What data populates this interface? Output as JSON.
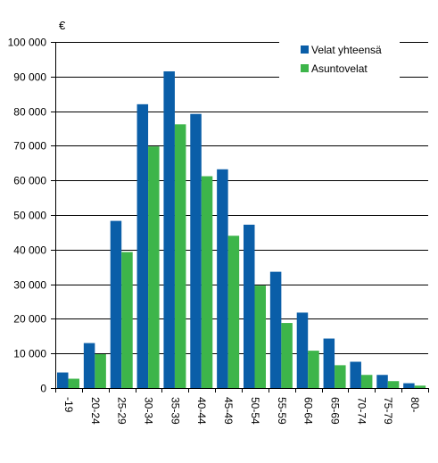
{
  "chart_data": {
    "type": "bar",
    "title": "",
    "unit_label": "€",
    "xlabel": "",
    "ylabel": "",
    "ylim": [
      0,
      100000
    ],
    "yticks": [
      0,
      10000,
      20000,
      30000,
      40000,
      50000,
      60000,
      70000,
      80000,
      90000,
      100000
    ],
    "ytick_labels": [
      "0",
      "10 000",
      "20 000",
      "30 000",
      "40 000",
      "50 000",
      "60 000",
      "70 000",
      "80 000",
      "90 000",
      "100 000"
    ],
    "grid": "horizontal",
    "legend_position": "top-right",
    "categories": [
      "-19",
      "20-24",
      "25-29",
      "30-34",
      "35-39",
      "40-44",
      "45-49",
      "50-54",
      "55-59",
      "60-64",
      "65-69",
      "70-74",
      "75-79",
      "80-"
    ],
    "series": [
      {
        "name": "Velat yhteensä",
        "color": "#0a5ea8",
        "values": [
          4500,
          13000,
          48300,
          82000,
          91500,
          79200,
          63200,
          47200,
          33600,
          21800,
          14300,
          7600,
          3800,
          1400
        ]
      },
      {
        "name": "Asuntovelat",
        "color": "#3db54a",
        "values": [
          2700,
          9800,
          39300,
          69800,
          76200,
          61200,
          44000,
          29600,
          18800,
          10800,
          6600,
          3800,
          2000,
          700
        ]
      }
    ]
  }
}
